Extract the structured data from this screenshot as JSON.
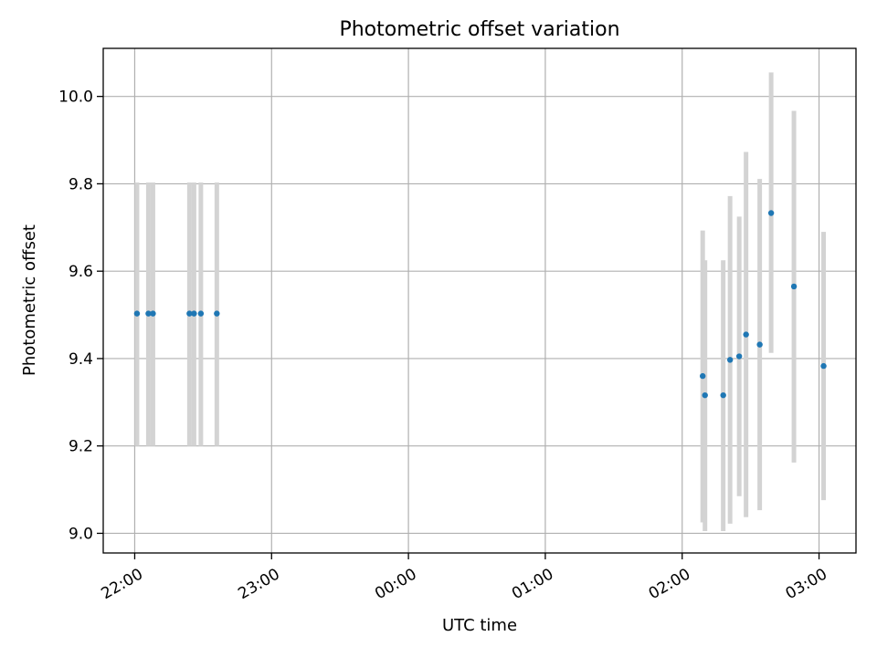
{
  "chart_data": {
    "type": "scatter",
    "title": "Photometric offset variation",
    "xlabel": "UTC time",
    "ylabel": "Photometric offset",
    "x_axis": {
      "unit": "hours since 22:00 UTC",
      "range": [
        -0.23,
        5.27
      ],
      "ticks": [
        {
          "value": 0,
          "label": "22:00"
        },
        {
          "value": 1,
          "label": "23:00"
        },
        {
          "value": 2,
          "label": "00:00"
        },
        {
          "value": 3,
          "label": "01:00"
        },
        {
          "value": 4,
          "label": "02:00"
        },
        {
          "value": 5,
          "label": "03:00"
        }
      ]
    },
    "y_axis": {
      "range": [
        8.955,
        10.11
      ],
      "ticks": [
        {
          "value": 9.0,
          "label": "9.0"
        },
        {
          "value": 9.2,
          "label": "9.2"
        },
        {
          "value": 9.4,
          "label": "9.4"
        },
        {
          "value": 9.6,
          "label": "9.6"
        },
        {
          "value": 9.8,
          "label": "9.8"
        },
        {
          "value": 10.0,
          "label": "10.0"
        }
      ]
    },
    "grid": true,
    "colors": {
      "point": "#1f77b4",
      "errorbar": "#d3d3d3"
    },
    "points": [
      {
        "time": "22:01",
        "y": 9.503,
        "lo": 9.2,
        "hi": 9.803
      },
      {
        "time": "22:06",
        "y": 9.503,
        "lo": 9.2,
        "hi": 9.803
      },
      {
        "time": "22:08",
        "y": 9.503,
        "lo": 9.2,
        "hi": 9.803
      },
      {
        "time": "22:24",
        "y": 9.503,
        "lo": 9.2,
        "hi": 9.803
      },
      {
        "time": "22:26",
        "y": 9.503,
        "lo": 9.2,
        "hi": 9.803
      },
      {
        "time": "22:29",
        "y": 9.503,
        "lo": 9.2,
        "hi": 9.803
      },
      {
        "time": "22:36",
        "y": 9.503,
        "lo": 9.2,
        "hi": 9.803
      },
      {
        "time": "02:09",
        "y": 9.36,
        "lo": 9.025,
        "hi": 9.693
      },
      {
        "time": "02:10",
        "y": 9.316,
        "lo": 9.005,
        "hi": 9.625
      },
      {
        "time": "02:18",
        "y": 9.316,
        "lo": 9.005,
        "hi": 9.625
      },
      {
        "time": "02:21",
        "y": 9.397,
        "lo": 9.022,
        "hi": 9.772
      },
      {
        "time": "02:25",
        "y": 9.405,
        "lo": 9.085,
        "hi": 9.725
      },
      {
        "time": "02:28",
        "y": 9.455,
        "lo": 9.037,
        "hi": 9.873
      },
      {
        "time": "02:34",
        "y": 9.432,
        "lo": 9.053,
        "hi": 9.811
      },
      {
        "time": "02:39",
        "y": 9.733,
        "lo": 9.413,
        "hi": 10.055
      },
      {
        "time": "02:49",
        "y": 9.565,
        "lo": 9.162,
        "hi": 9.967
      },
      {
        "time": "03:02",
        "y": 9.383,
        "lo": 9.076,
        "hi": 9.69
      }
    ]
  }
}
